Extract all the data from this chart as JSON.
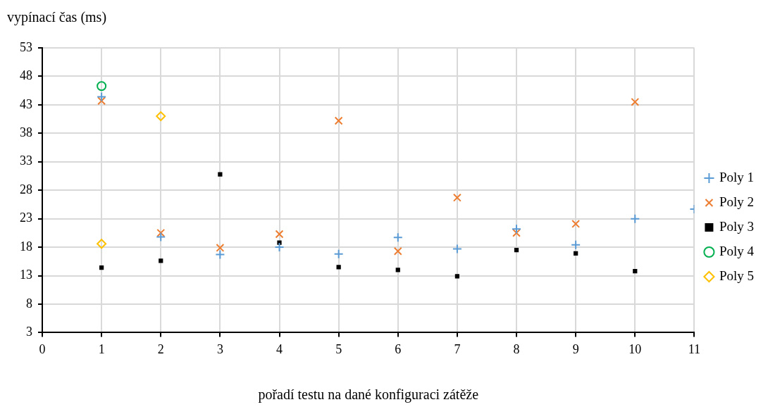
{
  "chart_data": {
    "type": "scatter",
    "xlabel": "pořadí testu na dané konfiguraci zátěže",
    "ylabel": "vypínací čas (ms)",
    "xlim": [
      0,
      11
    ],
    "xticks": [
      0,
      1,
      2,
      3,
      4,
      5,
      6,
      7,
      8,
      9,
      10,
      11
    ],
    "ylim": [
      3,
      53
    ],
    "yticks": [
      3,
      8,
      13,
      18,
      23,
      28,
      33,
      38,
      43,
      48,
      53
    ],
    "grid": true,
    "legend": "right",
    "series": [
      {
        "name": "Poly 1",
        "color": "#5b9bd5",
        "marker": "plus",
        "x": [
          1,
          2,
          3,
          4,
          5,
          6,
          7,
          8,
          9,
          10,
          11
        ],
        "values": [
          44.4,
          19.8,
          16.7,
          18.0,
          16.8,
          19.7,
          17.7,
          21.2,
          18.4,
          23.0,
          24.7
        ]
      },
      {
        "name": "Poly 2",
        "color": "#ed7d31",
        "marker": "cross",
        "x": [
          1,
          2,
          3,
          4,
          5,
          6,
          7,
          8,
          9,
          10
        ],
        "values": [
          43.7,
          20.5,
          17.9,
          20.3,
          40.2,
          17.3,
          26.7,
          20.5,
          22.1,
          43.5
        ]
      },
      {
        "name": "Poly 3",
        "color": "#000000",
        "marker": "square",
        "x": [
          1,
          2,
          3,
          4,
          5,
          6,
          7,
          8,
          9,
          10
        ],
        "values": [
          14.4,
          15.6,
          30.8,
          18.8,
          14.5,
          14.0,
          12.9,
          17.5,
          16.9,
          13.8
        ]
      },
      {
        "name": "Poly 4",
        "color": "#00b050",
        "marker": "circle",
        "x": [
          1
        ],
        "values": [
          46.3
        ]
      },
      {
        "name": "Poly 5",
        "color": "#ffc000",
        "marker": "diamond",
        "x": [
          1,
          2
        ],
        "values": [
          18.6,
          41.0
        ]
      }
    ]
  }
}
